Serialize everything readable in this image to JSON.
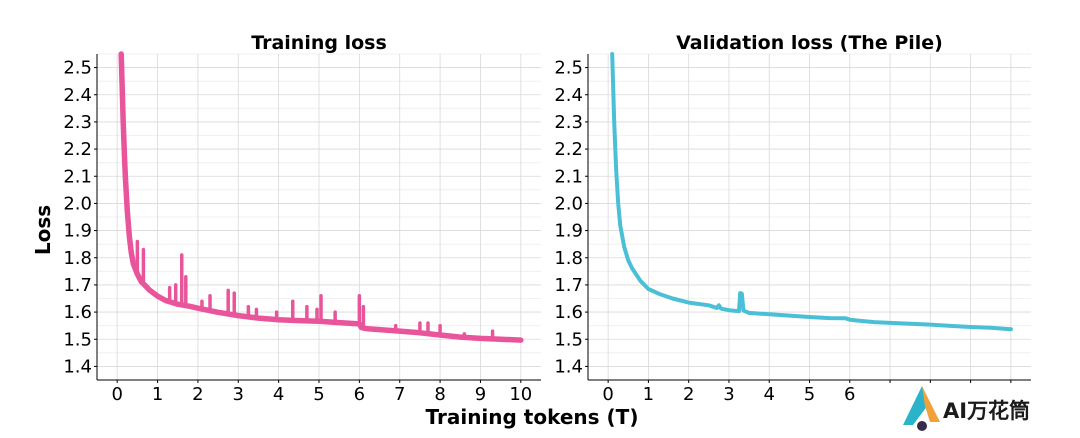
{
  "chart_data": [
    {
      "type": "line",
      "title": "Training loss",
      "ylabel": "Loss",
      "xlabel": "Training tokens (T)",
      "xlim": [
        -0.5,
        10.5
      ],
      "ylim": [
        1.35,
        2.55
      ],
      "xticks": [
        0,
        1,
        2,
        3,
        4,
        5,
        6,
        7,
        8,
        9,
        10
      ],
      "yticks": [
        1.4,
        1.5,
        1.6,
        1.7,
        1.8,
        1.9,
        2.0,
        2.1,
        2.2,
        2.3,
        2.4,
        2.5
      ],
      "ytick_labels": [
        "1.4",
        "1.5",
        "1.6",
        "1.7",
        "1.8",
        "1.9",
        "2.0",
        "2.1",
        "2.2",
        "2.3",
        "2.4",
        "2.5"
      ],
      "grid": true,
      "color": "#e8559b",
      "series": [
        {
          "x": [
            0.1,
            0.12,
            0.15,
            0.18,
            0.2,
            0.25,
            0.3,
            0.35,
            0.4,
            0.5,
            0.6,
            0.7,
            0.8,
            1.0,
            1.2,
            1.5,
            1.8,
            2.0,
            2.5,
            3.0,
            3.5,
            4.0,
            4.5,
            5.0,
            5.5,
            6.0,
            6.05,
            6.2,
            6.5,
            7.0,
            7.5,
            8.0,
            8.5,
            9.0,
            9.5,
            10.0
          ],
          "y": [
            2.55,
            2.45,
            2.3,
            2.18,
            2.1,
            1.97,
            1.88,
            1.82,
            1.78,
            1.74,
            1.71,
            1.695,
            1.68,
            1.66,
            1.645,
            1.63,
            1.62,
            1.612,
            1.598,
            1.588,
            1.58,
            1.573,
            1.568,
            1.564,
            1.56,
            1.557,
            1.545,
            1.54,
            1.535,
            1.528,
            1.522,
            1.516,
            1.51,
            1.505,
            1.5,
            1.495
          ]
        }
      ],
      "spikes": [
        {
          "x": 0.5,
          "y": 1.86
        },
        {
          "x": 0.65,
          "y": 1.83
        },
        {
          "x": 1.3,
          "y": 1.69
        },
        {
          "x": 1.45,
          "y": 1.7
        },
        {
          "x": 1.6,
          "y": 1.81
        },
        {
          "x": 1.7,
          "y": 1.73
        },
        {
          "x": 2.1,
          "y": 1.64
        },
        {
          "x": 2.3,
          "y": 1.66
        },
        {
          "x": 2.75,
          "y": 1.68
        },
        {
          "x": 2.9,
          "y": 1.67
        },
        {
          "x": 3.25,
          "y": 1.62
        },
        {
          "x": 3.45,
          "y": 1.61
        },
        {
          "x": 3.95,
          "y": 1.6
        },
        {
          "x": 4.35,
          "y": 1.64
        },
        {
          "x": 4.7,
          "y": 1.62
        },
        {
          "x": 4.95,
          "y": 1.61
        },
        {
          "x": 5.05,
          "y": 1.66
        },
        {
          "x": 5.4,
          "y": 1.6
        },
        {
          "x": 6.0,
          "y": 1.66
        },
        {
          "x": 6.1,
          "y": 1.62
        },
        {
          "x": 6.9,
          "y": 1.55
        },
        {
          "x": 7.5,
          "y": 1.56
        },
        {
          "x": 7.7,
          "y": 1.56
        },
        {
          "x": 8.0,
          "y": 1.55
        },
        {
          "x": 8.6,
          "y": 1.52
        },
        {
          "x": 9.3,
          "y": 1.53
        }
      ]
    },
    {
      "type": "line",
      "title": "Validation loss (The Pile)",
      "xlim": [
        -0.5,
        10.5
      ],
      "ylim": [
        1.35,
        2.55
      ],
      "xticks": [
        0,
        1,
        2,
        3,
        4,
        5,
        6
      ],
      "yticks": [
        1.4,
        1.5,
        1.6,
        1.7,
        1.8,
        1.9,
        2.0,
        2.1,
        2.2,
        2.3,
        2.4,
        2.5
      ],
      "ytick_labels": [
        "1.4",
        "1.5",
        "1.6",
        "1.7",
        "1.8",
        "1.9",
        "2.0",
        "2.1",
        "2.2",
        "2.3",
        "2.4",
        "2.5"
      ],
      "grid": true,
      "color": "#4bbfd6",
      "series": [
        {
          "x": [
            0.1,
            0.12,
            0.15,
            0.2,
            0.25,
            0.3,
            0.4,
            0.5,
            0.6,
            0.8,
            1.0,
            1.3,
            1.6,
            2.0,
            2.5,
            2.7,
            2.75,
            2.8,
            3.0,
            3.25,
            3.28,
            3.32,
            3.36,
            3.5,
            4.0,
            4.5,
            5.0,
            5.5,
            5.9,
            6.0,
            6.3,
            6.6,
            7.0,
            7.5,
            8.0,
            8.5,
            9.0,
            9.5,
            10.0
          ],
          "y": [
            2.55,
            2.45,
            2.3,
            2.12,
            2.0,
            1.92,
            1.84,
            1.79,
            1.76,
            1.715,
            1.685,
            1.665,
            1.65,
            1.635,
            1.625,
            1.615,
            1.625,
            1.613,
            1.607,
            1.603,
            1.67,
            1.668,
            1.605,
            1.597,
            1.592,
            1.587,
            1.582,
            1.578,
            1.577,
            1.572,
            1.567,
            1.563,
            1.56,
            1.557,
            1.554,
            1.549,
            1.545,
            1.542,
            1.537
          ]
        }
      ],
      "spikes": []
    }
  ],
  "watermark": {
    "text": "AI万花筒"
  }
}
